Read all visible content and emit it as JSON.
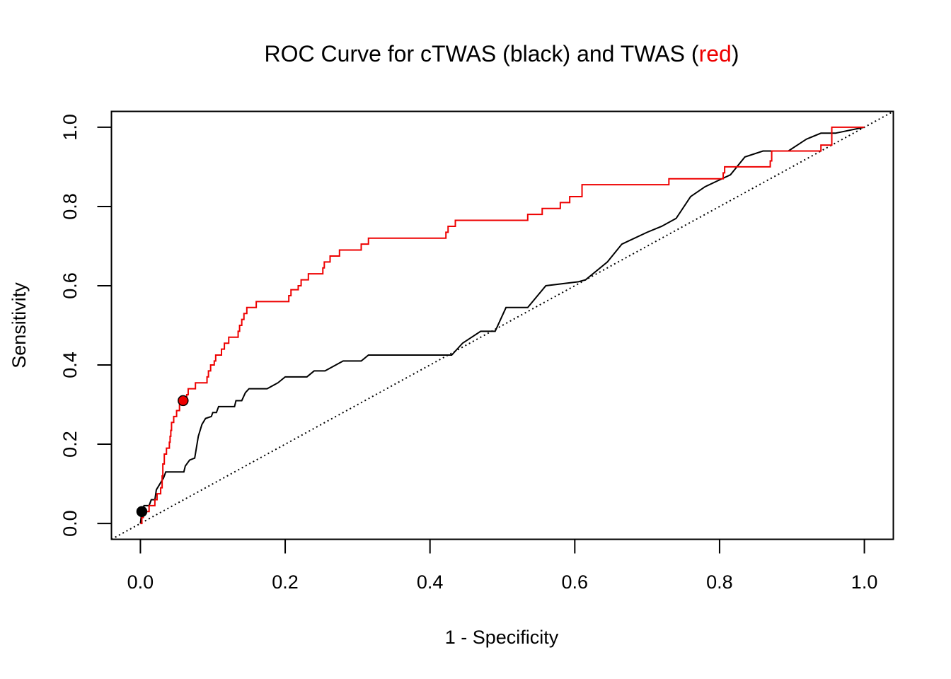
{
  "chart_data": {
    "type": "line",
    "title_parts": {
      "prefix": "ROC Curve for cTWAS (black) and TWAS (",
      "highlight": "red",
      "suffix": ")"
    },
    "xlabel": "1 - Specificity",
    "ylabel": "Sensitivity",
    "xlim": [
      -0.04,
      1.04
    ],
    "ylim": [
      -0.04,
      1.04
    ],
    "x_ticks": [
      0.0,
      0.2,
      0.4,
      0.6,
      0.8,
      1.0
    ],
    "y_ticks": [
      0.0,
      0.2,
      0.4,
      0.6,
      0.8,
      1.0
    ],
    "x_tick_labels": [
      "0.0",
      "0.2",
      "0.4",
      "0.6",
      "0.8",
      "1.0"
    ],
    "y_tick_labels": [
      "0.0",
      "0.2",
      "0.4",
      "0.6",
      "0.8",
      "1.0"
    ],
    "grid": false,
    "reference_line": {
      "style": "dotted",
      "from": [
        -0.04,
        -0.04
      ],
      "to": [
        1.04,
        1.04
      ],
      "color": "#000000"
    },
    "series": [
      {
        "color": "#000000",
        "shape": "linear",
        "points": [
          [
            0.0,
            0.0
          ],
          [
            0.002,
            0.03
          ],
          [
            0.005,
            0.045
          ],
          [
            0.012,
            0.045
          ],
          [
            0.015,
            0.06
          ],
          [
            0.02,
            0.06
          ],
          [
            0.022,
            0.085
          ],
          [
            0.027,
            0.1
          ],
          [
            0.032,
            0.115
          ],
          [
            0.035,
            0.13
          ],
          [
            0.06,
            0.13
          ],
          [
            0.062,
            0.145
          ],
          [
            0.068,
            0.16
          ],
          [
            0.075,
            0.165
          ],
          [
            0.08,
            0.22
          ],
          [
            0.085,
            0.25
          ],
          [
            0.09,
            0.265
          ],
          [
            0.098,
            0.27
          ],
          [
            0.1,
            0.28
          ],
          [
            0.105,
            0.28
          ],
          [
            0.108,
            0.295
          ],
          [
            0.13,
            0.295
          ],
          [
            0.132,
            0.31
          ],
          [
            0.14,
            0.31
          ],
          [
            0.145,
            0.33
          ],
          [
            0.15,
            0.34
          ],
          [
            0.175,
            0.34
          ],
          [
            0.19,
            0.355
          ],
          [
            0.2,
            0.37
          ],
          [
            0.23,
            0.37
          ],
          [
            0.24,
            0.385
          ],
          [
            0.255,
            0.385
          ],
          [
            0.28,
            0.41
          ],
          [
            0.305,
            0.41
          ],
          [
            0.315,
            0.425
          ],
          [
            0.43,
            0.425
          ],
          [
            0.445,
            0.455
          ],
          [
            0.47,
            0.485
          ],
          [
            0.49,
            0.485
          ],
          [
            0.505,
            0.545
          ],
          [
            0.535,
            0.545
          ],
          [
            0.56,
            0.6
          ],
          [
            0.605,
            0.61
          ],
          [
            0.615,
            0.615
          ],
          [
            0.645,
            0.66
          ],
          [
            0.665,
            0.705
          ],
          [
            0.7,
            0.735
          ],
          [
            0.72,
            0.75
          ],
          [
            0.74,
            0.77
          ],
          [
            0.76,
            0.825
          ],
          [
            0.78,
            0.85
          ],
          [
            0.815,
            0.88
          ],
          [
            0.835,
            0.925
          ],
          [
            0.86,
            0.94
          ],
          [
            0.88,
            0.94
          ],
          [
            0.895,
            0.94
          ],
          [
            0.92,
            0.97
          ],
          [
            0.94,
            0.985
          ],
          [
            0.96,
            0.985
          ],
          [
            1.0,
            1.0
          ]
        ]
      },
      {
        "color": "#ee0000",
        "shape": "step",
        "points": [
          [
            0.0,
            0.0
          ],
          [
            0.002,
            0.015
          ],
          [
            0.004,
            0.03
          ],
          [
            0.01,
            0.03
          ],
          [
            0.012,
            0.045
          ],
          [
            0.017,
            0.045
          ],
          [
            0.02,
            0.06
          ],
          [
            0.023,
            0.075
          ],
          [
            0.028,
            0.09
          ],
          [
            0.03,
            0.12
          ],
          [
            0.031,
            0.15
          ],
          [
            0.033,
            0.175
          ],
          [
            0.036,
            0.19
          ],
          [
            0.04,
            0.205
          ],
          [
            0.041,
            0.22
          ],
          [
            0.042,
            0.235
          ],
          [
            0.043,
            0.255
          ],
          [
            0.046,
            0.27
          ],
          [
            0.05,
            0.285
          ],
          [
            0.054,
            0.3
          ],
          [
            0.058,
            0.31
          ],
          [
            0.064,
            0.325
          ],
          [
            0.066,
            0.34
          ],
          [
            0.076,
            0.355
          ],
          [
            0.09,
            0.355
          ],
          [
            0.092,
            0.37
          ],
          [
            0.094,
            0.385
          ],
          [
            0.097,
            0.4
          ],
          [
            0.1,
            0.4
          ],
          [
            0.102,
            0.41
          ],
          [
            0.104,
            0.425
          ],
          [
            0.112,
            0.44
          ],
          [
            0.116,
            0.455
          ],
          [
            0.122,
            0.47
          ],
          [
            0.135,
            0.485
          ],
          [
            0.137,
            0.5
          ],
          [
            0.14,
            0.515
          ],
          [
            0.143,
            0.53
          ],
          [
            0.147,
            0.545
          ],
          [
            0.16,
            0.56
          ],
          [
            0.2,
            0.56
          ],
          [
            0.205,
            0.575
          ],
          [
            0.208,
            0.59
          ],
          [
            0.218,
            0.6
          ],
          [
            0.222,
            0.615
          ],
          [
            0.232,
            0.63
          ],
          [
            0.252,
            0.645
          ],
          [
            0.254,
            0.66
          ],
          [
            0.262,
            0.675
          ],
          [
            0.275,
            0.69
          ],
          [
            0.305,
            0.705
          ],
          [
            0.315,
            0.72
          ],
          [
            0.42,
            0.72
          ],
          [
            0.422,
            0.735
          ],
          [
            0.425,
            0.75
          ],
          [
            0.435,
            0.765
          ],
          [
            0.53,
            0.765
          ],
          [
            0.535,
            0.78
          ],
          [
            0.55,
            0.78
          ],
          [
            0.555,
            0.795
          ],
          [
            0.575,
            0.795
          ],
          [
            0.58,
            0.81
          ],
          [
            0.59,
            0.81
          ],
          [
            0.593,
            0.825
          ],
          [
            0.61,
            0.825
          ],
          [
            0.61,
            0.855
          ],
          [
            0.73,
            0.855
          ],
          [
            0.73,
            0.87
          ],
          [
            0.8,
            0.87
          ],
          [
            0.805,
            0.885
          ],
          [
            0.807,
            0.9
          ],
          [
            0.865,
            0.9
          ],
          [
            0.87,
            0.915
          ],
          [
            0.872,
            0.94
          ],
          [
            0.94,
            0.94
          ],
          [
            0.94,
            0.955
          ],
          [
            0.955,
            0.97
          ],
          [
            0.955,
            1.0
          ],
          [
            1.0,
            1.0
          ]
        ]
      }
    ],
    "highlighted_points": [
      {
        "x": 0.002,
        "y": 0.03,
        "fill": "#000000"
      },
      {
        "x": 0.059,
        "y": 0.31,
        "fill": "#ee0000"
      }
    ]
  }
}
